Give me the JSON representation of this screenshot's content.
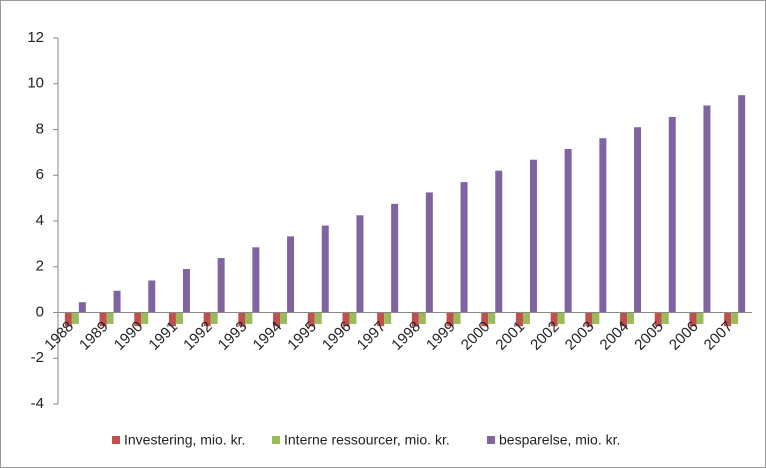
{
  "chart_data": {
    "type": "bar",
    "categories": [
      "1988",
      "1989",
      "1990",
      "1991",
      "1992",
      "1993",
      "1994",
      "1995",
      "1996",
      "1997",
      "1998",
      "1999",
      "2000",
      "2001",
      "2002",
      "2003",
      "2004",
      "2005",
      "2006",
      "2007"
    ],
    "series": [
      {
        "name": "Investering, mio. kr.",
        "color": "#c0504d",
        "values": [
          -0.6,
          -0.6,
          -0.6,
          -0.6,
          -0.6,
          -0.6,
          -0.6,
          -0.6,
          -0.6,
          -0.6,
          -0.6,
          -0.6,
          -0.6,
          -0.6,
          -0.6,
          -0.6,
          -0.6,
          -0.6,
          -0.6,
          -0.6
        ]
      },
      {
        "name": "Interne ressourcer, mio. kr.",
        "color": "#9bbb59",
        "values": [
          -0.5,
          -0.5,
          -0.5,
          -0.5,
          -0.5,
          -0.5,
          -0.5,
          -0.5,
          -0.5,
          -0.5,
          -0.5,
          -0.5,
          -0.5,
          -0.5,
          -0.5,
          -0.5,
          -0.5,
          -0.5,
          -0.5,
          -0.5
        ]
      },
      {
        "name": "besparelse, mio. kr.",
        "color": "#8064a2",
        "values": [
          0.45,
          0.95,
          1.4,
          1.9,
          2.38,
          2.85,
          3.33,
          3.8,
          4.25,
          4.75,
          5.25,
          5.7,
          6.2,
          6.68,
          7.15,
          7.62,
          8.1,
          8.55,
          9.05,
          9.5
        ]
      }
    ],
    "ylim": [
      -4,
      12
    ],
    "yticks": [
      -4,
      -2,
      0,
      2,
      4,
      6,
      8,
      10,
      12
    ],
    "grid": false,
    "legend": "bottom"
  }
}
